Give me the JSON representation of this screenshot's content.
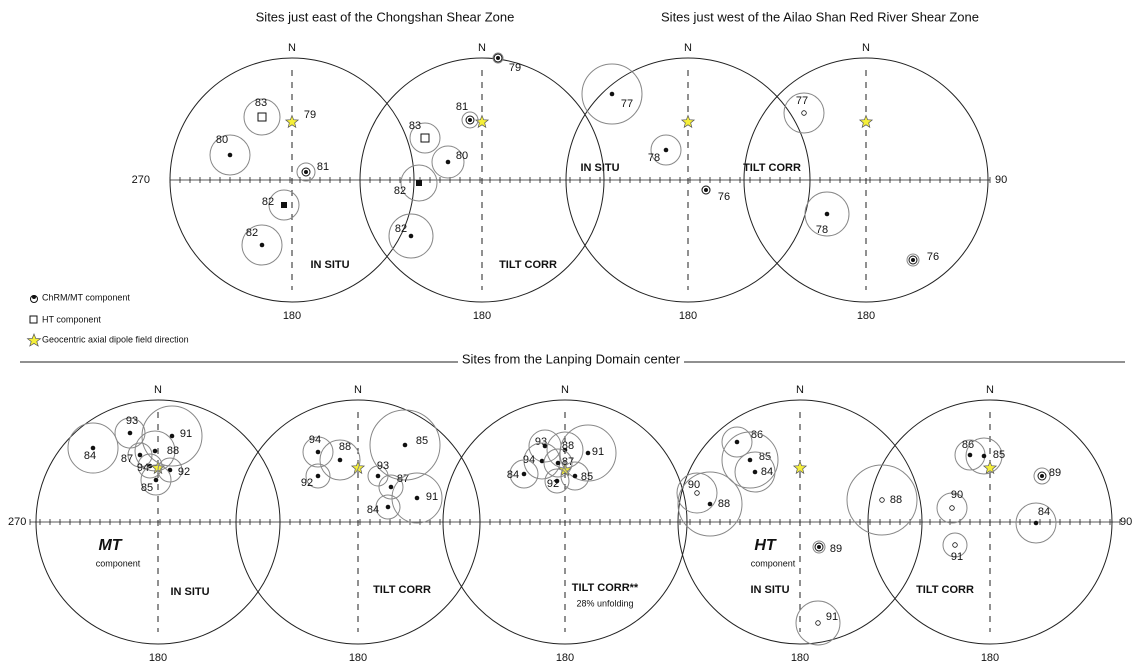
{
  "header": {
    "top_left_title": "Sites just east of the Chongshan Shear Zone",
    "top_right_title": "Sites just west of the Ailao Shan Red River Shear Zone",
    "bottom_title": "Sites from the Lanping Domain center"
  },
  "axes": {
    "top_west": "270",
    "top_east": "90",
    "bottom_west": "270",
    "bottom_east": "90"
  },
  "legend": [
    "ChRM/MT component",
    "HT component",
    "Geocentric axial dipole field direction"
  ],
  "nets": [
    {
      "north": "N",
      "south": "180",
      "label": "IN SITU",
      "points": [
        "83",
        "79",
        "80",
        "81",
        "82",
        "82"
      ]
    },
    {
      "north": "N",
      "south": "180",
      "label": "TILT CORR",
      "points": [
        "79",
        "81",
        "83",
        "80",
        "82",
        "82"
      ]
    },
    {
      "north": "N",
      "south": "180",
      "label": "IN SITU",
      "points": [
        "77",
        "78",
        "76"
      ]
    },
    {
      "north": "N",
      "south": "180",
      "label": "TILT CORR",
      "points": [
        "77",
        "78",
        "76"
      ]
    },
    {
      "north": "N",
      "south": "180",
      "label": "IN SITU",
      "component": "MT",
      "component_note": "component",
      "points": [
        "84",
        "93",
        "91",
        "88",
        "87",
        "94",
        "92",
        "85"
      ]
    },
    {
      "north": "N",
      "south": "180",
      "label": "TILT CORR",
      "points": [
        "94",
        "88",
        "92",
        "85",
        "93",
        "87",
        "84",
        "91"
      ]
    },
    {
      "north": "N",
      "south": "180",
      "label": "TILT CORR**",
      "note": "28% unfolding",
      "points": [
        "93",
        "88",
        "91",
        "94",
        "87",
        "84",
        "85",
        "92"
      ]
    },
    {
      "north": "N",
      "south": "180",
      "label": "IN SITU",
      "component": "HT",
      "component_note": "component",
      "points": [
        "86",
        "85",
        "84",
        "90",
        "88",
        "89",
        "91"
      ]
    },
    {
      "north": "N",
      "south": "180",
      "label": "TILT CORR",
      "points": [
        "86",
        "85",
        "89",
        "88",
        "90",
        "84",
        "91"
      ]
    }
  ]
}
